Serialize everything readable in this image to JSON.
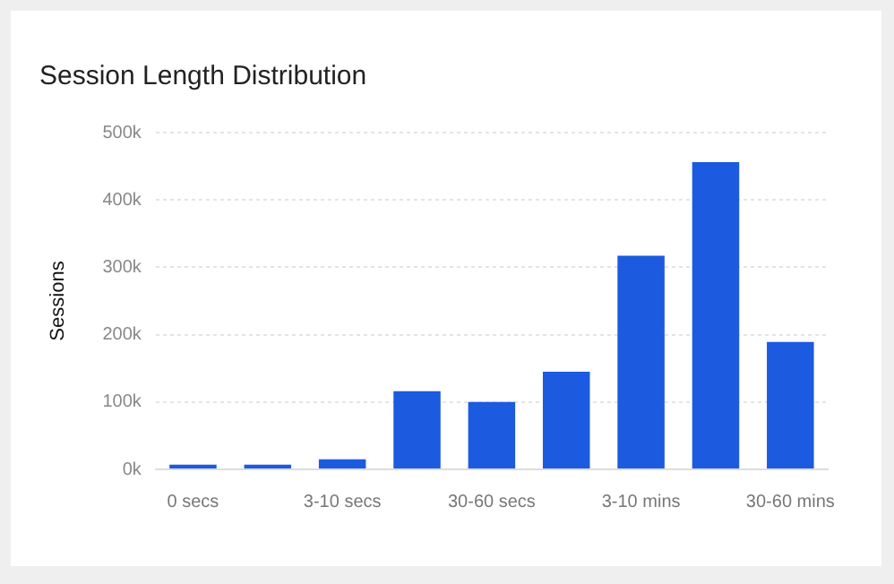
{
  "chart_data": {
    "type": "bar",
    "title": "Session Length Distribution",
    "ylabel": "Sessions",
    "categories": [
      "0 secs",
      null,
      "3-10 secs",
      null,
      "30-60 secs",
      null,
      "3-10 mins",
      null,
      "30-60 mins"
    ],
    "values": [
      7000,
      7000,
      15000,
      116000,
      100000,
      145000,
      317000,
      456000,
      189000
    ],
    "color": "#1c5be0",
    "ylim": [
      0,
      500000
    ],
    "yticks": [
      {
        "value": 0,
        "label": "0k"
      },
      {
        "value": 100000,
        "label": "100k"
      },
      {
        "value": 200000,
        "label": "200k"
      },
      {
        "value": 300000,
        "label": "300k"
      },
      {
        "value": 400000,
        "label": "400k"
      },
      {
        "value": 500000,
        "label": "500k"
      }
    ],
    "grid": "y"
  }
}
